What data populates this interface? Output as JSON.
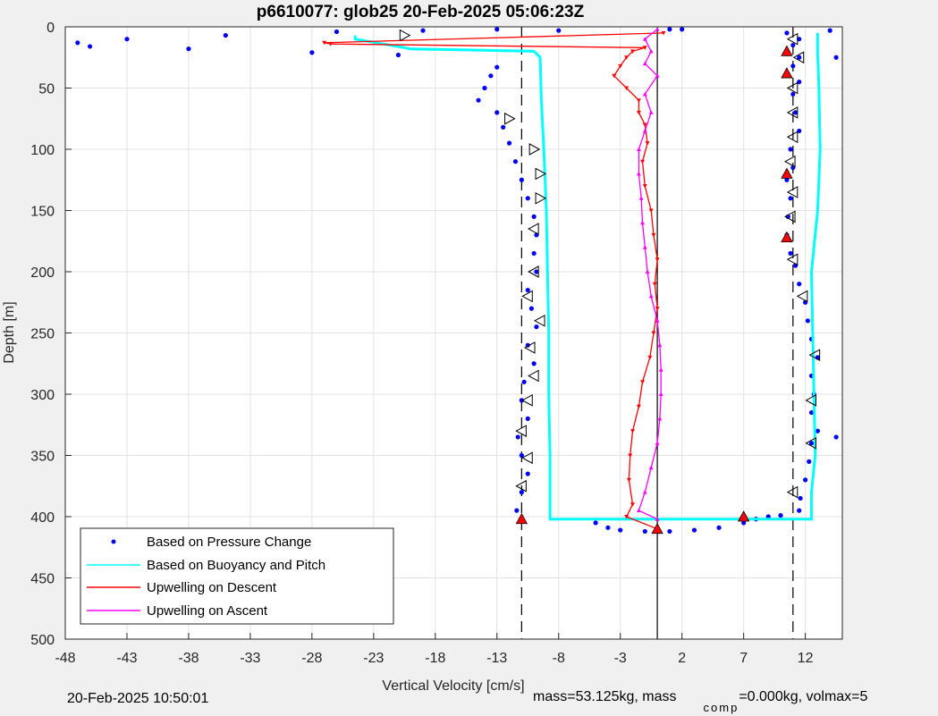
{
  "chart_data": {
    "type": "scatter",
    "title": "p6610077: glob25 20-Feb-2025 05:06:23Z",
    "xlabel": "Vertical Velocity [cm/s]",
    "ylabel": "Depth [m]",
    "xlim": [
      -48,
      15
    ],
    "ylim": [
      0,
      500
    ],
    "y_reversed": true,
    "grid": true,
    "xticks": [
      -48,
      -43,
      -38,
      -33,
      -28,
      -23,
      -18,
      -13,
      -8,
      -3,
      2,
      7,
      12
    ],
    "yticks": [
      0,
      50,
      100,
      150,
      200,
      250,
      300,
      350,
      400,
      450,
      500
    ],
    "reference_lines": [
      {
        "x": -11,
        "style": "dashed"
      },
      {
        "x": 0,
        "style": "solid"
      },
      {
        "x": 11,
        "style": "dashed"
      }
    ],
    "legend_position": "bottom-left",
    "series": [
      {
        "name": "Based on Pressure Change",
        "color": "#0000ff",
        "marker": "dot",
        "points": [
          [
            -47,
            13
          ],
          [
            -46,
            16
          ],
          [
            -43,
            10
          ],
          [
            -38,
            18
          ],
          [
            -35,
            7
          ],
          [
            -28,
            21
          ],
          [
            -26,
            4
          ],
          [
            -21,
            23
          ],
          [
            -19,
            3
          ],
          [
            -13,
            2
          ],
          [
            -8,
            3
          ],
          [
            1,
            2
          ],
          [
            2,
            2
          ],
          [
            -13,
            33
          ],
          [
            -13.5,
            40
          ],
          [
            -14,
            50
          ],
          [
            -14.5,
            60
          ],
          [
            -13,
            70
          ],
          [
            -12.5,
            82
          ],
          [
            -12,
            95
          ],
          [
            -11.5,
            110
          ],
          [
            -11,
            125
          ],
          [
            -10.5,
            140
          ],
          [
            -10,
            155
          ],
          [
            -9.8,
            170
          ],
          [
            -10,
            185
          ],
          [
            -9.8,
            200
          ],
          [
            -10.5,
            215
          ],
          [
            -10.2,
            230
          ],
          [
            -9.8,
            245
          ],
          [
            -10.5,
            260
          ],
          [
            -10,
            275
          ],
          [
            -10.8,
            290
          ],
          [
            -11,
            305
          ],
          [
            -10.5,
            320
          ],
          [
            -11.3,
            335
          ],
          [
            -11,
            350
          ],
          [
            -10.5,
            365
          ],
          [
            -11,
            380
          ],
          [
            -11.4,
            395
          ],
          [
            -5,
            405
          ],
          [
            -4,
            409
          ],
          [
            -3,
            411
          ],
          [
            -1,
            412
          ],
          [
            1,
            412
          ],
          [
            3,
            411
          ],
          [
            5,
            409
          ],
          [
            7,
            405
          ],
          [
            8,
            402
          ],
          [
            9,
            400
          ],
          [
            10,
            399
          ],
          [
            10.5,
            5
          ],
          [
            11.5,
            10
          ],
          [
            11,
            15
          ],
          [
            10.5,
            22
          ],
          [
            11.5,
            25
          ],
          [
            11,
            32
          ],
          [
            11.5,
            45
          ],
          [
            11,
            55
          ],
          [
            11.2,
            70
          ],
          [
            11.5,
            85
          ],
          [
            10.8,
            100
          ],
          [
            11,
            115
          ],
          [
            10.5,
            125
          ],
          [
            10.8,
            140
          ],
          [
            10.6,
            155
          ],
          [
            10.5,
            170
          ],
          [
            10.8,
            185
          ],
          [
            11.2,
            195
          ],
          [
            11.5,
            210
          ],
          [
            12,
            225
          ],
          [
            12.2,
            240
          ],
          [
            12.5,
            255
          ],
          [
            13,
            270
          ],
          [
            12.5,
            285
          ],
          [
            12.7,
            300
          ],
          [
            12.5,
            315
          ],
          [
            13,
            330
          ],
          [
            12.5,
            340
          ],
          [
            12.3,
            355
          ],
          [
            12,
            370
          ],
          [
            11.6,
            385
          ],
          [
            11.5,
            395
          ],
          [
            14,
            3
          ],
          [
            14.5,
            25
          ],
          [
            14.5,
            335
          ]
        ]
      },
      {
        "name": "Based on Buoyancy and Pitch",
        "color": "#00ffff",
        "marker": "line",
        "points": [
          [
            -24.5,
            7
          ],
          [
            -24.5,
            10
          ],
          [
            -20.5,
            17
          ],
          [
            -20,
            18
          ],
          [
            -10,
            20
          ],
          [
            -9.5,
            25
          ],
          [
            -9.4,
            60
          ],
          [
            -9.2,
            100
          ],
          [
            -9,
            150
          ],
          [
            -8.9,
            200
          ],
          [
            -8.8,
            250
          ],
          [
            -8.8,
            300
          ],
          [
            -8.7,
            350
          ],
          [
            -8.7,
            402
          ],
          [
            12.5,
            402
          ],
          [
            12.5,
            380
          ],
          [
            12.8,
            350
          ],
          [
            12.7,
            300
          ],
          [
            12.6,
            250
          ],
          [
            12.5,
            200
          ],
          [
            13,
            150
          ],
          [
            13.2,
            100
          ],
          [
            13.1,
            50
          ],
          [
            13,
            20
          ],
          [
            13,
            5
          ]
        ]
      },
      {
        "name": "Upwelling on Descent",
        "color": "#ff0000",
        "marker": "triangle-down",
        "points": [
          [
            0.5,
            5
          ],
          [
            -27,
            13
          ],
          [
            -26.5,
            14
          ],
          [
            -1,
            17
          ],
          [
            -2,
            20
          ],
          [
            -2.5,
            25
          ],
          [
            -3,
            32
          ],
          [
            -3.5,
            40
          ],
          [
            -2.5,
            50
          ],
          [
            -1.5,
            60
          ],
          [
            -1.5,
            70
          ],
          [
            -1,
            80
          ],
          [
            -0.8,
            95
          ],
          [
            -1.2,
            110
          ],
          [
            -1,
            130
          ],
          [
            -0.5,
            150
          ],
          [
            -0.3,
            170
          ],
          [
            0,
            190
          ],
          [
            -0.2,
            210
          ],
          [
            0,
            230
          ],
          [
            -0.3,
            250
          ],
          [
            -0.6,
            270
          ],
          [
            -1.2,
            290
          ],
          [
            -1.5,
            310
          ],
          [
            -2,
            330
          ],
          [
            -2.2,
            350
          ],
          [
            -2.3,
            370
          ],
          [
            -2,
            390
          ],
          [
            -2.5,
            400
          ],
          [
            0,
            410
          ]
        ]
      },
      {
        "name": "Upwelling on Ascent",
        "color": "#ff00ff",
        "marker": "triangle-up",
        "points": [
          [
            0,
            2
          ],
          [
            -1,
            10
          ],
          [
            -0.5,
            20
          ],
          [
            -1,
            30
          ],
          [
            0,
            40
          ],
          [
            -1,
            55
          ],
          [
            -0.5,
            70
          ],
          [
            -1,
            85
          ],
          [
            -1.5,
            100
          ],
          [
            -1.5,
            120
          ],
          [
            -1.3,
            140
          ],
          [
            -1.2,
            160
          ],
          [
            -1,
            180
          ],
          [
            -0.8,
            200
          ],
          [
            -0.5,
            220
          ],
          [
            0,
            240
          ],
          [
            0.2,
            260
          ],
          [
            0.3,
            280
          ],
          [
            0.3,
            300
          ],
          [
            0.2,
            320
          ],
          [
            0,
            340
          ],
          [
            -0.5,
            360
          ],
          [
            -1,
            380
          ],
          [
            -1.5,
            395
          ],
          [
            0,
            402
          ]
        ]
      }
    ],
    "markers": [
      {
        "kind": "open-triangle-right",
        "points": [
          [
            -20.5,
            7
          ],
          [
            -12,
            75
          ],
          [
            -10,
            100
          ],
          [
            -9.5,
            120
          ],
          [
            -9.5,
            140
          ]
        ]
      },
      {
        "kind": "open-triangle-left",
        "points": [
          [
            -10,
            165
          ],
          [
            -10,
            200
          ],
          [
            -10.5,
            220
          ],
          [
            -9.5,
            240
          ],
          [
            -10.3,
            262
          ],
          [
            -10,
            285
          ],
          [
            -10.5,
            305
          ],
          [
            -11,
            330
          ],
          [
            -10.5,
            352
          ],
          [
            -11,
            375
          ],
          [
            11,
            10
          ],
          [
            11.5,
            25
          ],
          [
            11,
            50
          ],
          [
            11,
            70
          ],
          [
            11,
            90
          ],
          [
            10.8,
            110
          ],
          [
            11,
            135
          ],
          [
            10.8,
            155
          ],
          [
            11,
            190
          ],
          [
            11.8,
            220
          ],
          [
            12.8,
            268
          ],
          [
            12.5,
            305
          ],
          [
            12.5,
            340
          ],
          [
            11,
            380
          ]
        ]
      },
      {
        "kind": "filled-red",
        "points": [
          [
            -11,
            402
          ],
          [
            7,
            400
          ],
          [
            0,
            410
          ],
          [
            10.5,
            20
          ],
          [
            10.5,
            38
          ],
          [
            10.5,
            120
          ],
          [
            10.5,
            172
          ]
        ]
      }
    ]
  },
  "footer": {
    "timestamp": "20-Feb-2025 10:50:01",
    "mass_info": "mass=53.125kg, mass",
    "mass_sub": "comp",
    "mass_rest": "=0.000kg, volmax=5"
  }
}
